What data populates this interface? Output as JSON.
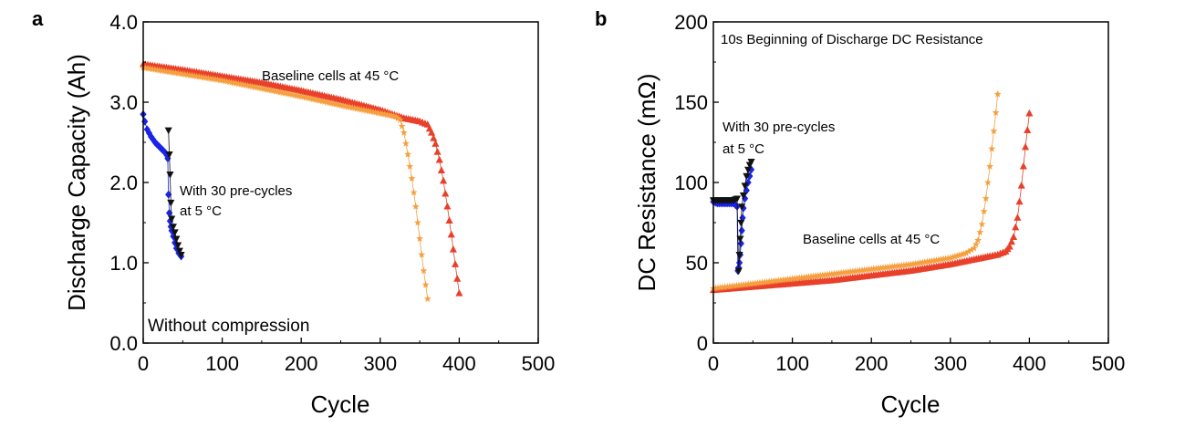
{
  "chart_data": [
    {
      "type": "scatter",
      "panel_label": "a",
      "xlabel": "Cycle",
      "ylabel": "Discharge Capacity (Ah)",
      "xlim": [
        0,
        500
      ],
      "ylim": [
        0.0,
        4.0
      ],
      "xticks": [
        0,
        100,
        200,
        300,
        400,
        500
      ],
      "xtick_labels": [
        "0",
        "100",
        "200",
        "300",
        "400",
        "500"
      ],
      "yticks": [
        0.0,
        1.0,
        2.0,
        3.0,
        4.0
      ],
      "ytick_labels": [
        "0.0",
        "1.0",
        "2.0",
        "3.0",
        "4.0"
      ],
      "annotations": [
        {
          "text": "Baseline cells at 45 °C"
        },
        {
          "text": "With 30 pre-cycles"
        },
        {
          "text": "at 5 °C"
        },
        {
          "text": "Without compression"
        }
      ],
      "series": [
        {
          "name": "Baseline cell 1 (45 °C)",
          "color": "#e8402a",
          "marker": "triangle-up",
          "x": [
            0,
            50,
            100,
            150,
            200,
            250,
            300,
            330,
            350,
            360,
            365,
            370,
            375,
            380,
            385,
            390,
            395,
            400
          ],
          "y": [
            3.47,
            3.4,
            3.32,
            3.24,
            3.14,
            3.03,
            2.9,
            2.8,
            2.76,
            2.72,
            2.62,
            2.48,
            2.28,
            2.02,
            1.7,
            1.35,
            0.98,
            0.62
          ]
        },
        {
          "name": "Baseline cell 2 (45 °C)",
          "color": "#f5a040",
          "marker": "star",
          "x": [
            0,
            50,
            100,
            150,
            200,
            250,
            300,
            320,
            325,
            330,
            335,
            340,
            345,
            350,
            355,
            360
          ],
          "y": [
            3.43,
            3.35,
            3.27,
            3.17,
            3.07,
            2.96,
            2.86,
            2.82,
            2.78,
            2.62,
            2.35,
            2.05,
            1.7,
            1.3,
            0.9,
            0.55
          ]
        },
        {
          "name": "Pre-cycled cell 1 (5 °C)",
          "color": "#1a24e6",
          "marker": "diamond",
          "x": [
            0,
            2,
            5,
            10,
            15,
            20,
            25,
            28,
            30,
            31,
            32,
            33,
            34,
            35,
            36,
            38,
            40,
            42,
            45,
            48
          ],
          "y": [
            2.85,
            2.76,
            2.66,
            2.57,
            2.5,
            2.45,
            2.4,
            2.37,
            2.34,
            2.3,
            1.85,
            1.62,
            1.52,
            1.45,
            1.4,
            1.33,
            1.25,
            1.18,
            1.12,
            1.08
          ]
        },
        {
          "name": "Pre-cycled cell 2 (5 °C)",
          "color": "#111111",
          "marker": "triangle-down",
          "x": [
            32,
            33,
            34,
            35,
            36,
            38,
            40,
            42,
            44,
            46,
            48
          ],
          "y": [
            2.65,
            2.35,
            2.1,
            1.75,
            1.55,
            1.45,
            1.38,
            1.3,
            1.22,
            1.15,
            1.1
          ]
        }
      ]
    },
    {
      "type": "scatter",
      "panel_label": "b",
      "title": "10s Beginning of Discharge DC Resistance",
      "xlabel": "Cycle",
      "ylabel": "DC Resistance (mΩ)",
      "xlim": [
        0,
        500
      ],
      "ylim": [
        0,
        200
      ],
      "xticks": [
        0,
        100,
        200,
        300,
        400,
        500
      ],
      "xtick_labels": [
        "0",
        "100",
        "200",
        "300",
        "400",
        "500"
      ],
      "yticks": [
        0,
        50,
        100,
        150,
        200
      ],
      "ytick_labels": [
        "0",
        "50",
        "100",
        "150",
        "200"
      ],
      "annotations": [
        {
          "text": "With 30 pre-cycles"
        },
        {
          "text": "at 5 °C"
        },
        {
          "text": "Baseline cells at 45 °C"
        }
      ],
      "series": [
        {
          "name": "Baseline cell 1 (45 °C)",
          "color": "#e8402a",
          "marker": "triangle-up",
          "x": [
            0,
            50,
            100,
            150,
            200,
            250,
            300,
            330,
            350,
            360,
            370,
            375,
            380,
            385,
            390,
            395,
            400
          ],
          "y": [
            33,
            35,
            37,
            39,
            42,
            45,
            49,
            52,
            54,
            55,
            57,
            60,
            66,
            78,
            98,
            122,
            143
          ]
        },
        {
          "name": "Baseline cell 2 (45 °C)",
          "color": "#f5a040",
          "marker": "star",
          "x": [
            0,
            50,
            100,
            150,
            200,
            250,
            300,
            320,
            330,
            335,
            340,
            345,
            350,
            355,
            360
          ],
          "y": [
            34,
            37,
            40,
            43,
            46,
            49,
            53,
            56,
            59,
            64,
            74,
            90,
            110,
            132,
            155
          ]
        },
        {
          "name": "Pre-cycled cell 1 (5 °C)",
          "color": "#1a24e6",
          "marker": "diamond",
          "x": [
            0,
            5,
            10,
            15,
            20,
            25,
            28,
            30,
            31,
            32,
            33,
            34,
            35,
            36,
            37,
            38,
            40,
            42,
            44,
            46,
            48
          ],
          "y": [
            88,
            87,
            87,
            87,
            87,
            87,
            86,
            85,
            45,
            47,
            50,
            55,
            62,
            70,
            78,
            84,
            90,
            95,
            100,
            104,
            108
          ]
        },
        {
          "name": "Pre-cycled cell 2 (5 °C)",
          "color": "#111111",
          "marker": "triangle-down",
          "x": [
            0,
            5,
            10,
            15,
            20,
            25,
            30,
            32,
            33,
            34,
            35,
            36,
            38,
            40,
            42,
            44,
            46,
            48
          ],
          "y": [
            89,
            89,
            89,
            89,
            89,
            89,
            90,
            45,
            55,
            65,
            75,
            85,
            92,
            98,
            104,
            108,
            111,
            113
          ]
        }
      ]
    }
  ]
}
